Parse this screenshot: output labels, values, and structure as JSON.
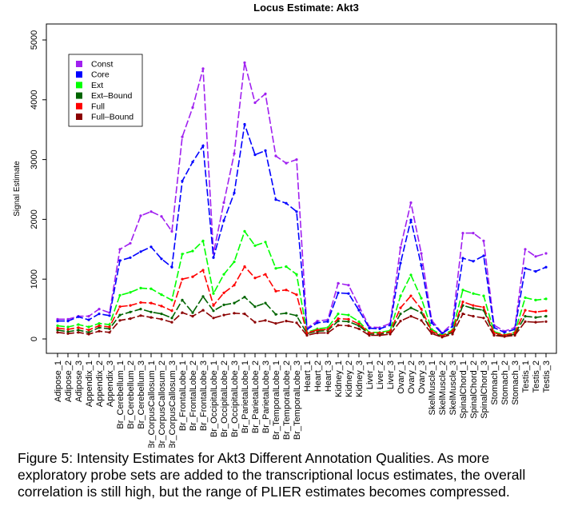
{
  "chart_data": {
    "type": "line",
    "title": "Locus Estimate: Akt3",
    "xlabel": "",
    "ylabel": "Signal Estimate",
    "ylim": [
      0,
      5000
    ],
    "yticks": [
      0,
      1000,
      2000,
      3000,
      4000,
      5000
    ],
    "grid": false,
    "legend_position": "top-left",
    "categories": [
      "Adipose_1",
      "Adipose_2",
      "Adipose_3",
      "Appendix_1",
      "Appendix_2",
      "Appendix_3",
      "Br_Cerebellum_1",
      "Br_Cerebellum_2",
      "Br_Cerebellum_3",
      "Br_CorpusCallosum_1",
      "Br_CorpusCallosum_2",
      "Br_CorpusCallosum_3",
      "Br_FrontalLobe_1",
      "Br_FrontalLobe_2",
      "Br_FrontalLobe_3",
      "Br_OccipitalLobe_1",
      "Br_OccipitalLobe_2",
      "Br_OccipitalLobe_3",
      "Br_ParietalLobe_1",
      "Br_ParietalLobe_2",
      "Br_ParietalLobe_3",
      "Br_TemporalLobe_1",
      "Br_TemporalLobe_2",
      "Br_TemporalLobe_3",
      "Heart_1",
      "Heart_2",
      "Heart_3",
      "Kidney_1",
      "Kidney_2",
      "Kidney_3",
      "Liver_1",
      "Liver_2",
      "Liver_3",
      "Ovary_1",
      "Ovary_2",
      "Ovary_3",
      "SkelMuscle_1",
      "SkelMuscle_2",
      "SkelMuscle_3",
      "SpinalChord_1",
      "SpinalChord_2",
      "SpinalChord_3",
      "Stomach_1",
      "Stomach_2",
      "Stomach_3",
      "Testis_1",
      "Testis_2",
      "Testis_3"
    ],
    "series": [
      {
        "name": "Const",
        "color": "#a020f0",
        "values": [
          330,
          330,
          380,
          380,
          500,
          440,
          1500,
          1600,
          2060,
          2130,
          2050,
          1800,
          3380,
          3870,
          4520,
          1430,
          2280,
          3100,
          4620,
          3950,
          4100,
          3060,
          2940,
          3000,
          180,
          300,
          320,
          930,
          900,
          550,
          200,
          190,
          260,
          1530,
          2280,
          1430,
          310,
          100,
          260,
          1770,
          1770,
          1640,
          230,
          130,
          190,
          1500,
          1380,
          1430
        ]
      },
      {
        "name": "Core",
        "color": "#0000ff",
        "values": [
          300,
          300,
          370,
          320,
          420,
          390,
          1310,
          1360,
          1460,
          1540,
          1340,
          1200,
          2640,
          2960,
          3230,
          1360,
          1980,
          2440,
          3590,
          3080,
          3150,
          2330,
          2270,
          2130,
          160,
          270,
          290,
          770,
          760,
          480,
          180,
          170,
          230,
          1270,
          1990,
          1230,
          270,
          90,
          210,
          1350,
          1300,
          1390,
          190,
          110,
          160,
          1180,
          1130,
          1200
        ]
      },
      {
        "name": "Ext",
        "color": "#00ff00",
        "values": [
          220,
          200,
          240,
          200,
          260,
          240,
          730,
          780,
          850,
          840,
          740,
          650,
          1420,
          1470,
          1640,
          760,
          1080,
          1290,
          1800,
          1560,
          1620,
          1180,
          1210,
          1080,
          110,
          170,
          190,
          420,
          400,
          290,
          110,
          110,
          140,
          720,
          1070,
          680,
          160,
          60,
          150,
          820,
          760,
          720,
          120,
          70,
          110,
          690,
          650,
          670
        ]
      },
      {
        "name": "Ext–Bound",
        "color": "#006400",
        "values": [
          150,
          120,
          150,
          110,
          190,
          170,
          400,
          450,
          500,
          450,
          420,
          350,
          650,
          440,
          710,
          470,
          570,
          600,
          700,
          540,
          600,
          410,
          430,
          390,
          90,
          130,
          140,
          300,
          290,
          220,
          80,
          80,
          110,
          420,
          520,
          440,
          120,
          40,
          110,
          560,
          510,
          480,
          80,
          50,
          80,
          380,
          360,
          380
        ]
      },
      {
        "name": "Full",
        "color": "#ff0000",
        "values": [
          180,
          160,
          190,
          150,
          220,
          200,
          540,
          560,
          610,
          600,
          550,
          470,
          1000,
          1040,
          1150,
          560,
          770,
          900,
          1210,
          1020,
          1080,
          800,
          820,
          740,
          100,
          150,
          160,
          340,
          330,
          250,
          100,
          100,
          120,
          520,
          720,
          500,
          130,
          50,
          130,
          620,
          560,
          530,
          100,
          60,
          100,
          480,
          450,
          470
        ]
      },
      {
        "name": "Full–Bound",
        "color": "#8b0000",
        "values": [
          110,
          90,
          110,
          80,
          130,
          110,
          310,
          340,
          390,
          360,
          330,
          280,
          440,
          380,
          480,
          350,
          400,
          430,
          420,
          280,
          310,
          260,
          300,
          270,
          60,
          100,
          100,
          230,
          220,
          170,
          60,
          60,
          80,
          300,
          380,
          310,
          90,
          30,
          80,
          420,
          380,
          350,
          60,
          40,
          60,
          290,
          280,
          290
        ]
      }
    ]
  },
  "caption": "Figure 5: Intensity Estimates for Akt3 Different Annotation Qualities. As more exploratory probe sets are added to the transcriptional locus estimates, the overall correlation is still high, but the range of PLIER estimates becomes compressed."
}
